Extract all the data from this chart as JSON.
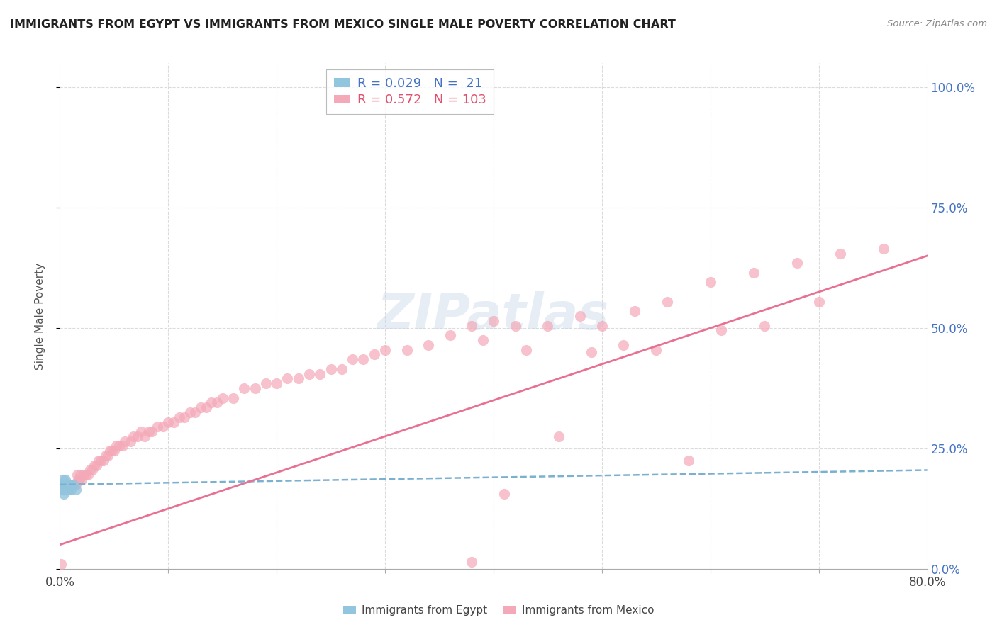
{
  "title": "IMMIGRANTS FROM EGYPT VS IMMIGRANTS FROM MEXICO SINGLE MALE POVERTY CORRELATION CHART",
  "source": "Source: ZipAtlas.com",
  "ylabel": "Single Male Poverty",
  "right_yticks": [
    "100.0%",
    "75.0%",
    "50.0%",
    "25.0%",
    "0.0%"
  ],
  "right_ytick_vals": [
    1.0,
    0.75,
    0.5,
    0.25,
    0.0
  ],
  "legend_egypt_r": "0.029",
  "legend_egypt_n": "21",
  "legend_mexico_r": "0.572",
  "legend_mexico_n": "103",
  "egypt_color": "#92c5de",
  "mexico_color": "#f4a9b8",
  "egypt_line_color": "#7ab0d0",
  "mexico_line_color": "#e87092",
  "watermark": "ZIPatlas",
  "egypt_x": [
    0.001,
    0.001,
    0.002,
    0.002,
    0.003,
    0.003,
    0.004,
    0.004,
    0.005,
    0.005,
    0.005,
    0.006,
    0.006,
    0.007,
    0.007,
    0.008,
    0.008,
    0.009,
    0.01,
    0.012,
    0.015
  ],
  "egypt_y": [
    0.175,
    0.165,
    0.175,
    0.165,
    0.185,
    0.165,
    0.165,
    0.155,
    0.165,
    0.185,
    0.175,
    0.165,
    0.175,
    0.165,
    0.175,
    0.175,
    0.165,
    0.175,
    0.165,
    0.175,
    0.165
  ],
  "mexico_x": [
    0.001,
    0.002,
    0.003,
    0.004,
    0.005,
    0.005,
    0.006,
    0.007,
    0.008,
    0.009,
    0.01,
    0.011,
    0.012,
    0.013,
    0.014,
    0.015,
    0.016,
    0.017,
    0.018,
    0.019,
    0.02,
    0.022,
    0.024,
    0.026,
    0.028,
    0.03,
    0.032,
    0.034,
    0.036,
    0.038,
    0.04,
    0.042,
    0.044,
    0.046,
    0.048,
    0.05,
    0.052,
    0.055,
    0.058,
    0.06,
    0.065,
    0.068,
    0.072,
    0.075,
    0.078,
    0.082,
    0.085,
    0.09,
    0.095,
    0.1,
    0.105,
    0.11,
    0.115,
    0.12,
    0.125,
    0.13,
    0.135,
    0.14,
    0.145,
    0.15,
    0.16,
    0.17,
    0.18,
    0.19,
    0.2,
    0.21,
    0.22,
    0.23,
    0.24,
    0.25,
    0.26,
    0.27,
    0.28,
    0.29,
    0.3,
    0.32,
    0.34,
    0.36,
    0.38,
    0.4,
    0.42,
    0.45,
    0.48,
    0.5,
    0.53,
    0.56,
    0.6,
    0.64,
    0.68,
    0.72,
    0.76,
    0.39,
    0.41,
    0.43,
    0.46,
    0.49,
    0.52,
    0.55,
    0.58,
    0.61,
    0.65,
    0.7,
    0.38
  ],
  "mexico_y": [
    0.01,
    0.165,
    0.165,
    0.165,
    0.165,
    0.165,
    0.165,
    0.165,
    0.165,
    0.165,
    0.175,
    0.175,
    0.175,
    0.175,
    0.175,
    0.175,
    0.195,
    0.185,
    0.185,
    0.195,
    0.185,
    0.195,
    0.195,
    0.195,
    0.205,
    0.205,
    0.215,
    0.215,
    0.225,
    0.225,
    0.225,
    0.235,
    0.235,
    0.245,
    0.245,
    0.245,
    0.255,
    0.255,
    0.255,
    0.265,
    0.265,
    0.275,
    0.275,
    0.285,
    0.275,
    0.285,
    0.285,
    0.295,
    0.295,
    0.305,
    0.305,
    0.315,
    0.315,
    0.325,
    0.325,
    0.335,
    0.335,
    0.345,
    0.345,
    0.355,
    0.355,
    0.375,
    0.375,
    0.385,
    0.385,
    0.395,
    0.395,
    0.405,
    0.405,
    0.415,
    0.415,
    0.435,
    0.435,
    0.445,
    0.455,
    0.455,
    0.465,
    0.485,
    0.505,
    0.515,
    0.505,
    0.505,
    0.525,
    0.505,
    0.535,
    0.555,
    0.595,
    0.615,
    0.635,
    0.655,
    0.665,
    0.475,
    0.155,
    0.455,
    0.275,
    0.45,
    0.465,
    0.455,
    0.225,
    0.495,
    0.505,
    0.555,
    0.015
  ],
  "xlim": [
    0.0,
    0.8
  ],
  "ylim": [
    0.0,
    1.05
  ],
  "egypt_trend_x0": 0.0,
  "egypt_trend_x1": 0.8,
  "egypt_trend_y0": 0.175,
  "egypt_trend_y1": 0.205,
  "mexico_trend_x0": 0.0,
  "mexico_trend_x1": 0.8,
  "mexico_trend_y0": 0.05,
  "mexico_trend_y1": 0.65,
  "grid_color": "#d8d8d8"
}
